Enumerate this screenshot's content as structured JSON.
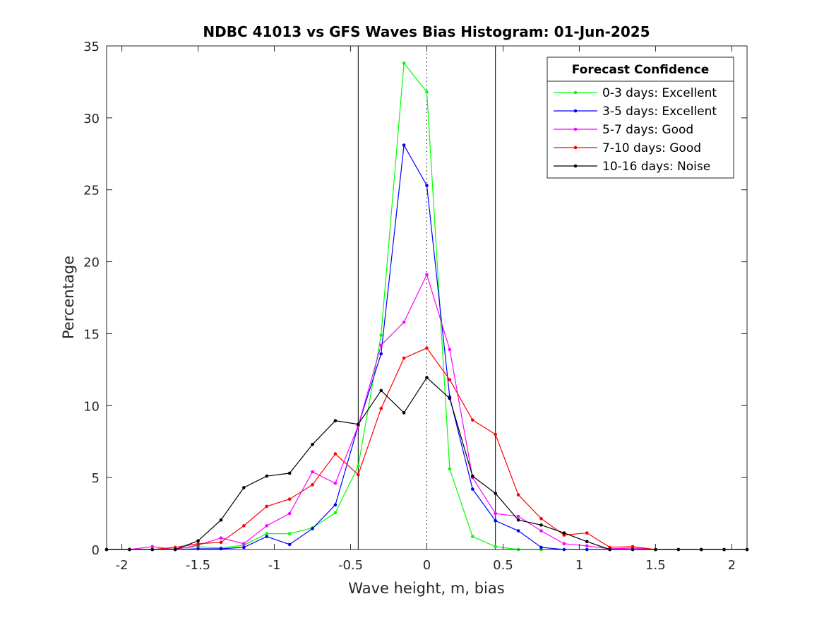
{
  "chart_data": {
    "type": "line",
    "title": "NDBC 41013 vs GFS Waves Bias Histogram: 01-Jun-2025",
    "xlabel": "Wave height, m, bias",
    "ylabel": "Percentage",
    "xlim": [
      -2.1,
      2.1
    ],
    "ylim": [
      0,
      35
    ],
    "xticks": [
      -2,
      -1.5,
      -1,
      -0.5,
      0,
      0.5,
      1,
      1.5,
      2
    ],
    "xtick_labels": [
      "-2",
      "-1.5",
      "-1",
      "-0.5",
      "0",
      "0.5",
      "1",
      "1.5",
      "2"
    ],
    "yticks": [
      0,
      5,
      10,
      15,
      20,
      25,
      30,
      35
    ],
    "ytick_labels": [
      "0",
      "5",
      "10",
      "15",
      "20",
      "25",
      "30",
      "35"
    ],
    "grid": false,
    "legend_title": "Forecast Confidence",
    "legend_placement": "top-right",
    "vertical_lines": [
      {
        "x": -0.45,
        "style": "solid"
      },
      {
        "x": 0,
        "style": "dotted"
      },
      {
        "x": 0.45,
        "style": "solid"
      }
    ],
    "x": [
      -2.1,
      -1.95,
      -1.8,
      -1.65,
      -1.5,
      -1.35,
      -1.2,
      -1.05,
      -0.9,
      -0.75,
      -0.6,
      -0.45,
      -0.3,
      -0.15,
      0,
      0.15,
      0.3,
      0.45,
      0.6,
      0.75,
      0.9,
      1.05,
      1.2,
      1.35,
      1.5,
      1.65,
      1.8,
      1.95,
      2.1
    ],
    "series": [
      {
        "name": "0-3 days: Excellent",
        "color": "#00ff00",
        "values": [
          0,
          0,
          0,
          0.05,
          0.2,
          0.1,
          0.3,
          1.1,
          1.1,
          1.5,
          2.55,
          5.8,
          14.9,
          33.8,
          31.8,
          5.6,
          0.9,
          0.2,
          0,
          0,
          0,
          0,
          0,
          0,
          0,
          0,
          0,
          0,
          0
        ]
      },
      {
        "name": "3-5 days: Excellent",
        "color": "#0000ff",
        "values": [
          0,
          0,
          0,
          0,
          0.05,
          0.05,
          0.15,
          0.9,
          0.35,
          1.45,
          3.1,
          8.6,
          13.6,
          28.1,
          25.3,
          10.6,
          4.2,
          2.0,
          1.3,
          0.15,
          0,
          0,
          0,
          0,
          0,
          0,
          0,
          0,
          0
        ]
      },
      {
        "name": "5-7 days: Good",
        "color": "#ff00ff",
        "values": [
          0,
          0,
          0.2,
          0,
          0.3,
          0.8,
          0.4,
          1.65,
          2.5,
          5.4,
          4.6,
          8.6,
          14.2,
          15.8,
          19.1,
          13.9,
          5.0,
          2.5,
          2.3,
          1.3,
          0.4,
          0.25,
          0.05,
          0.1,
          0,
          0,
          0,
          0,
          0
        ]
      },
      {
        "name": "7-10 days: Good",
        "color": "#ff0000",
        "values": [
          0,
          0,
          0,
          0.15,
          0.4,
          0.5,
          1.65,
          3.0,
          3.5,
          4.5,
          6.65,
          5.2,
          9.8,
          13.3,
          14.0,
          11.8,
          9.0,
          8.0,
          3.8,
          2.15,
          1.0,
          1.15,
          0.15,
          0.2,
          0,
          0,
          0,
          0,
          0
        ]
      },
      {
        "name": "10-16 days: Noise",
        "color": "#000000",
        "values": [
          0,
          0,
          0,
          0,
          0.6,
          2.05,
          4.3,
          5.1,
          5.3,
          7.3,
          8.95,
          8.7,
          11.05,
          9.5,
          11.95,
          10.5,
          5.1,
          3.9,
          2.05,
          1.7,
          1.15,
          0.55,
          0,
          0,
          0,
          0,
          0,
          0,
          0
        ]
      }
    ]
  }
}
